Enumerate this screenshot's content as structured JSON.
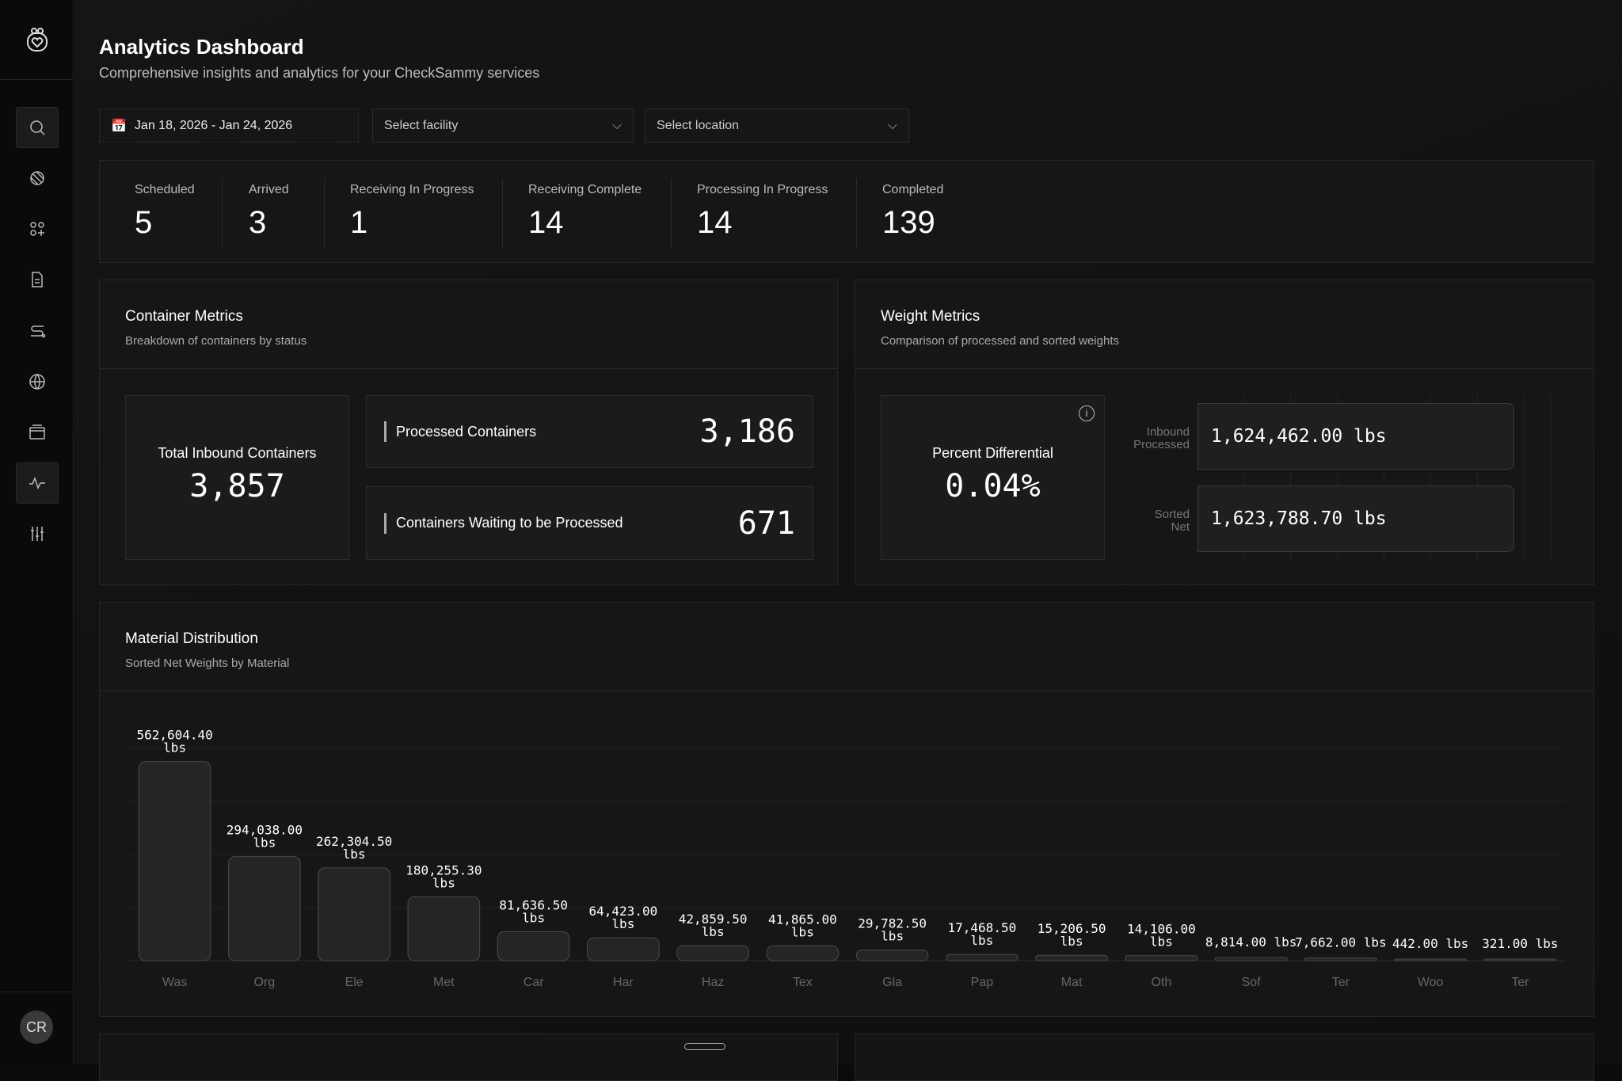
{
  "sidebar": {
    "items": [
      {
        "icon": "search-icon"
      },
      {
        "icon": "materials-icon"
      },
      {
        "icon": "apps-icon"
      },
      {
        "icon": "document-icon"
      },
      {
        "icon": "route-icon"
      },
      {
        "icon": "globe-icon"
      },
      {
        "icon": "wallet-icon"
      },
      {
        "icon": "activity-icon",
        "active": true
      },
      {
        "icon": "sliders-icon"
      }
    ],
    "avatar": "CR"
  },
  "header": {
    "title": "Analytics Dashboard",
    "subtitle": "Comprehensive insights and analytics for your CheckSammy services"
  },
  "filters": {
    "date_range": "Jan 18, 2026 - Jan 24, 2026",
    "facility_placeholder": "Select facility",
    "location_placeholder": "Select location"
  },
  "stats": [
    {
      "label": "Scheduled",
      "value": "5"
    },
    {
      "label": "Arrived",
      "value": "3"
    },
    {
      "label": "Receiving In Progress",
      "value": "1"
    },
    {
      "label": "Receiving Complete",
      "value": "14"
    },
    {
      "label": "Processing In Progress",
      "value": "14"
    },
    {
      "label": "Completed",
      "value": "139"
    }
  ],
  "container_metrics": {
    "title": "Container Metrics",
    "subtitle": "Breakdown of containers by status",
    "total_label": "Total Inbound Containers",
    "total_value": "3,857",
    "processed_label": "Processed Containers",
    "processed_value": "3,186",
    "waiting_label": "Containers Waiting to be Processed",
    "waiting_value": "671"
  },
  "weight_metrics": {
    "title": "Weight Metrics",
    "subtitle": "Comparison of processed and sorted weights",
    "percent_label": "Percent Differential",
    "percent_value": "0.04%",
    "inbound_label_1": "Inbound",
    "inbound_label_2": "Processed",
    "inbound_value": "1,624,462.00 lbs",
    "sorted_label_1": "Sorted",
    "sorted_label_2": "Net",
    "sorted_value": "1,623,788.70 lbs"
  },
  "material": {
    "title": "Material Distribution",
    "subtitle": "Sorted Net Weights by Material"
  },
  "chart_data": {
    "type": "bar",
    "categories": [
      "Was",
      "Org",
      "Ele",
      "Met",
      "Car",
      "Har",
      "Haz",
      "Tex",
      "Gla",
      "Pap",
      "Mat",
      "Oth",
      "Sof",
      "Ter",
      "Woo",
      "Ter"
    ],
    "values": [
      562604.4,
      294038.0,
      262304.5,
      180255.3,
      81636.5,
      64423.0,
      42859.5,
      41865.0,
      29782.5,
      17468.5,
      15206.5,
      14106.0,
      8814.0,
      7662.0,
      442.0,
      321.0
    ],
    "labels": [
      "562,604.40 lbs",
      "294,038.00 lbs",
      "262,304.50 lbs",
      "180,255.30 lbs",
      "81,636.50 lbs",
      "64,423.00 lbs",
      "42,859.50 lbs",
      "41,865.00 lbs",
      "29,782.50 lbs",
      "17,468.50 lbs",
      "15,206.50 lbs",
      "14,106.00 lbs",
      "8,814.00 lbs",
      "7,662.00 lbs",
      "442.00 lbs",
      "321.00 lbs"
    ],
    "ylim": [
      0,
      600000
    ],
    "grid": true,
    "title": "",
    "xlabel": "",
    "ylabel": ""
  },
  "colors": {
    "background": "#0b0b0b",
    "card": "#161616",
    "bar": "#262626",
    "text": "#ffffff"
  }
}
